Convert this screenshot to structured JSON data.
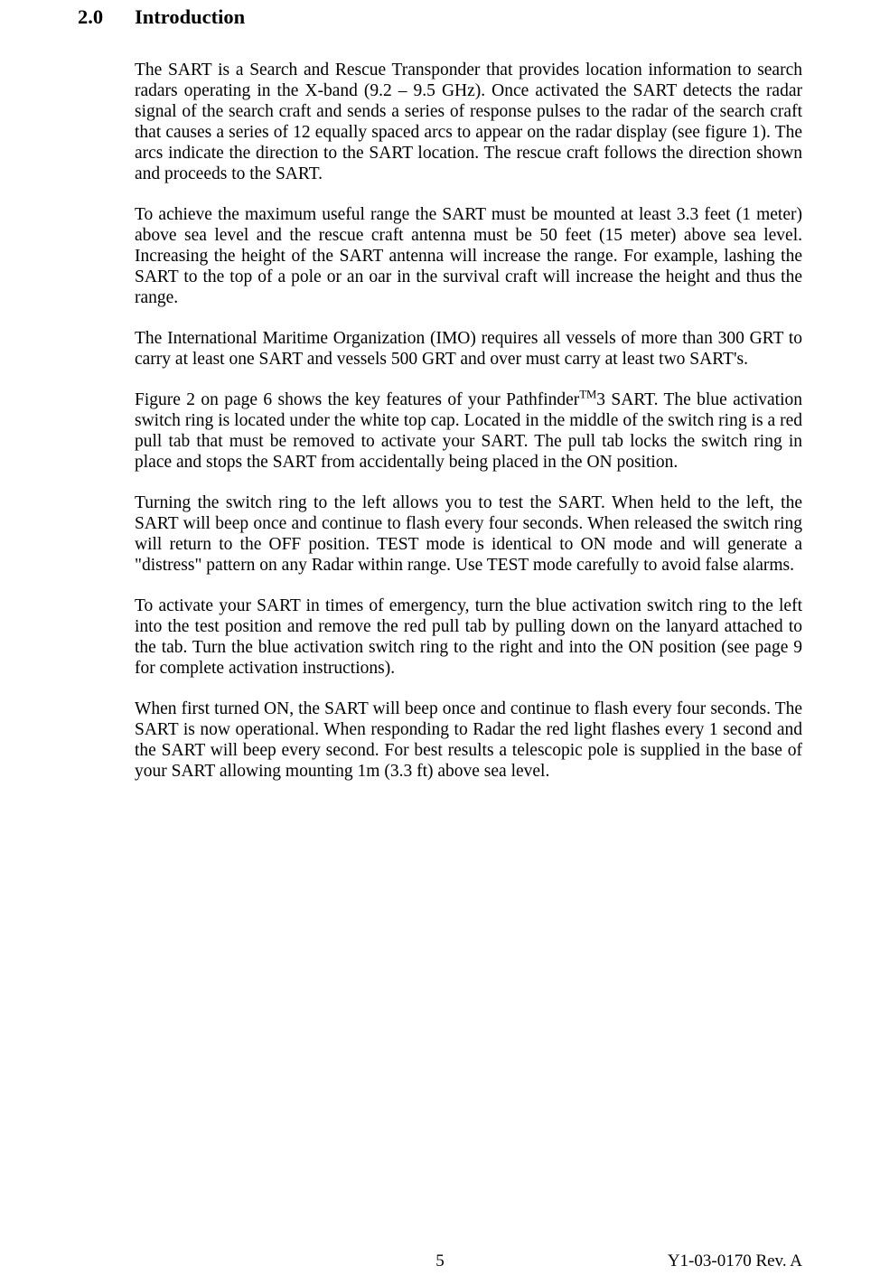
{
  "colors": {
    "background": "#ffffff",
    "text": "#000000"
  },
  "typography": {
    "body_font": "Times New Roman",
    "body_size_pt": 15,
    "heading_size_pt": 17,
    "heading_weight": "bold"
  },
  "heading": {
    "number": "2.0",
    "title": "Introduction"
  },
  "paragraphs": {
    "p1": "The SART is a Search and Rescue Transponder that provides location information to search radars operating in the X-band (9.2 – 9.5 GHz).  Once activated the SART detects the radar signal of the search craft and sends a series of response pulses to the radar of the search craft that causes a series of 12 equally spaced arcs to appear on the radar display (see figure 1).  The arcs indicate the direction to the SART location.  The rescue craft follows the direction shown and proceeds to the SART.",
    "p2": "To achieve the maximum useful range the SART must be mounted at least 3.3 feet (1 meter) above sea level and the rescue craft antenna must be 50 feet (15 meter) above sea level.  Increasing the height of the SART antenna will increase the range.  For example, lashing the SART to the top of a pole or an oar in the survival craft will increase the height and thus the range.",
    "p3": "The International Maritime Organization (IMO) requires all vessels of more than 300 GRT to carry at least one SART and vessels 500 GRT and over must carry at least two SART's.",
    "p4_a": "Figure 2 on page 6 shows the key features of your Pathfinder",
    "p4_sup": "TM",
    "p4_b": "3 SART.  The blue activation switch ring is located under the white top cap.  Located in the middle of the switch ring is a red pull tab that must be removed to activate your SART.  The pull tab locks the switch ring in place and stops the SART from accidentally being placed in the ON position.",
    "p5": "Turning the switch ring to the left allows you to test the SART.  When held to the left, the SART will beep once and continue to flash every four seconds.  When released the switch ring will return to the OFF position.  TEST mode is identical to ON mode and will generate a \"distress\" pattern on any Radar within range.  Use TEST mode carefully to avoid false alarms.",
    "p6": "To activate your SART in times of emergency, turn the blue activation switch ring to the left into the test position and remove the red pull tab by pulling down on the lanyard attached to the tab.  Turn the blue activation switch ring to the right and into the ON position (see page 9 for complete activation instructions).",
    "p7": "When first turned ON, the SART will beep once and continue to flash every four seconds.  The SART is now operational.  When responding to Radar the red light flashes every 1 second and the SART will beep every second.  For best results a telescopic pole is supplied in the base of your SART allowing mounting 1m (3.3 ft) above sea level."
  },
  "footer": {
    "page_number": "5",
    "doc_rev": "Y1-03-0170 Rev. A"
  }
}
